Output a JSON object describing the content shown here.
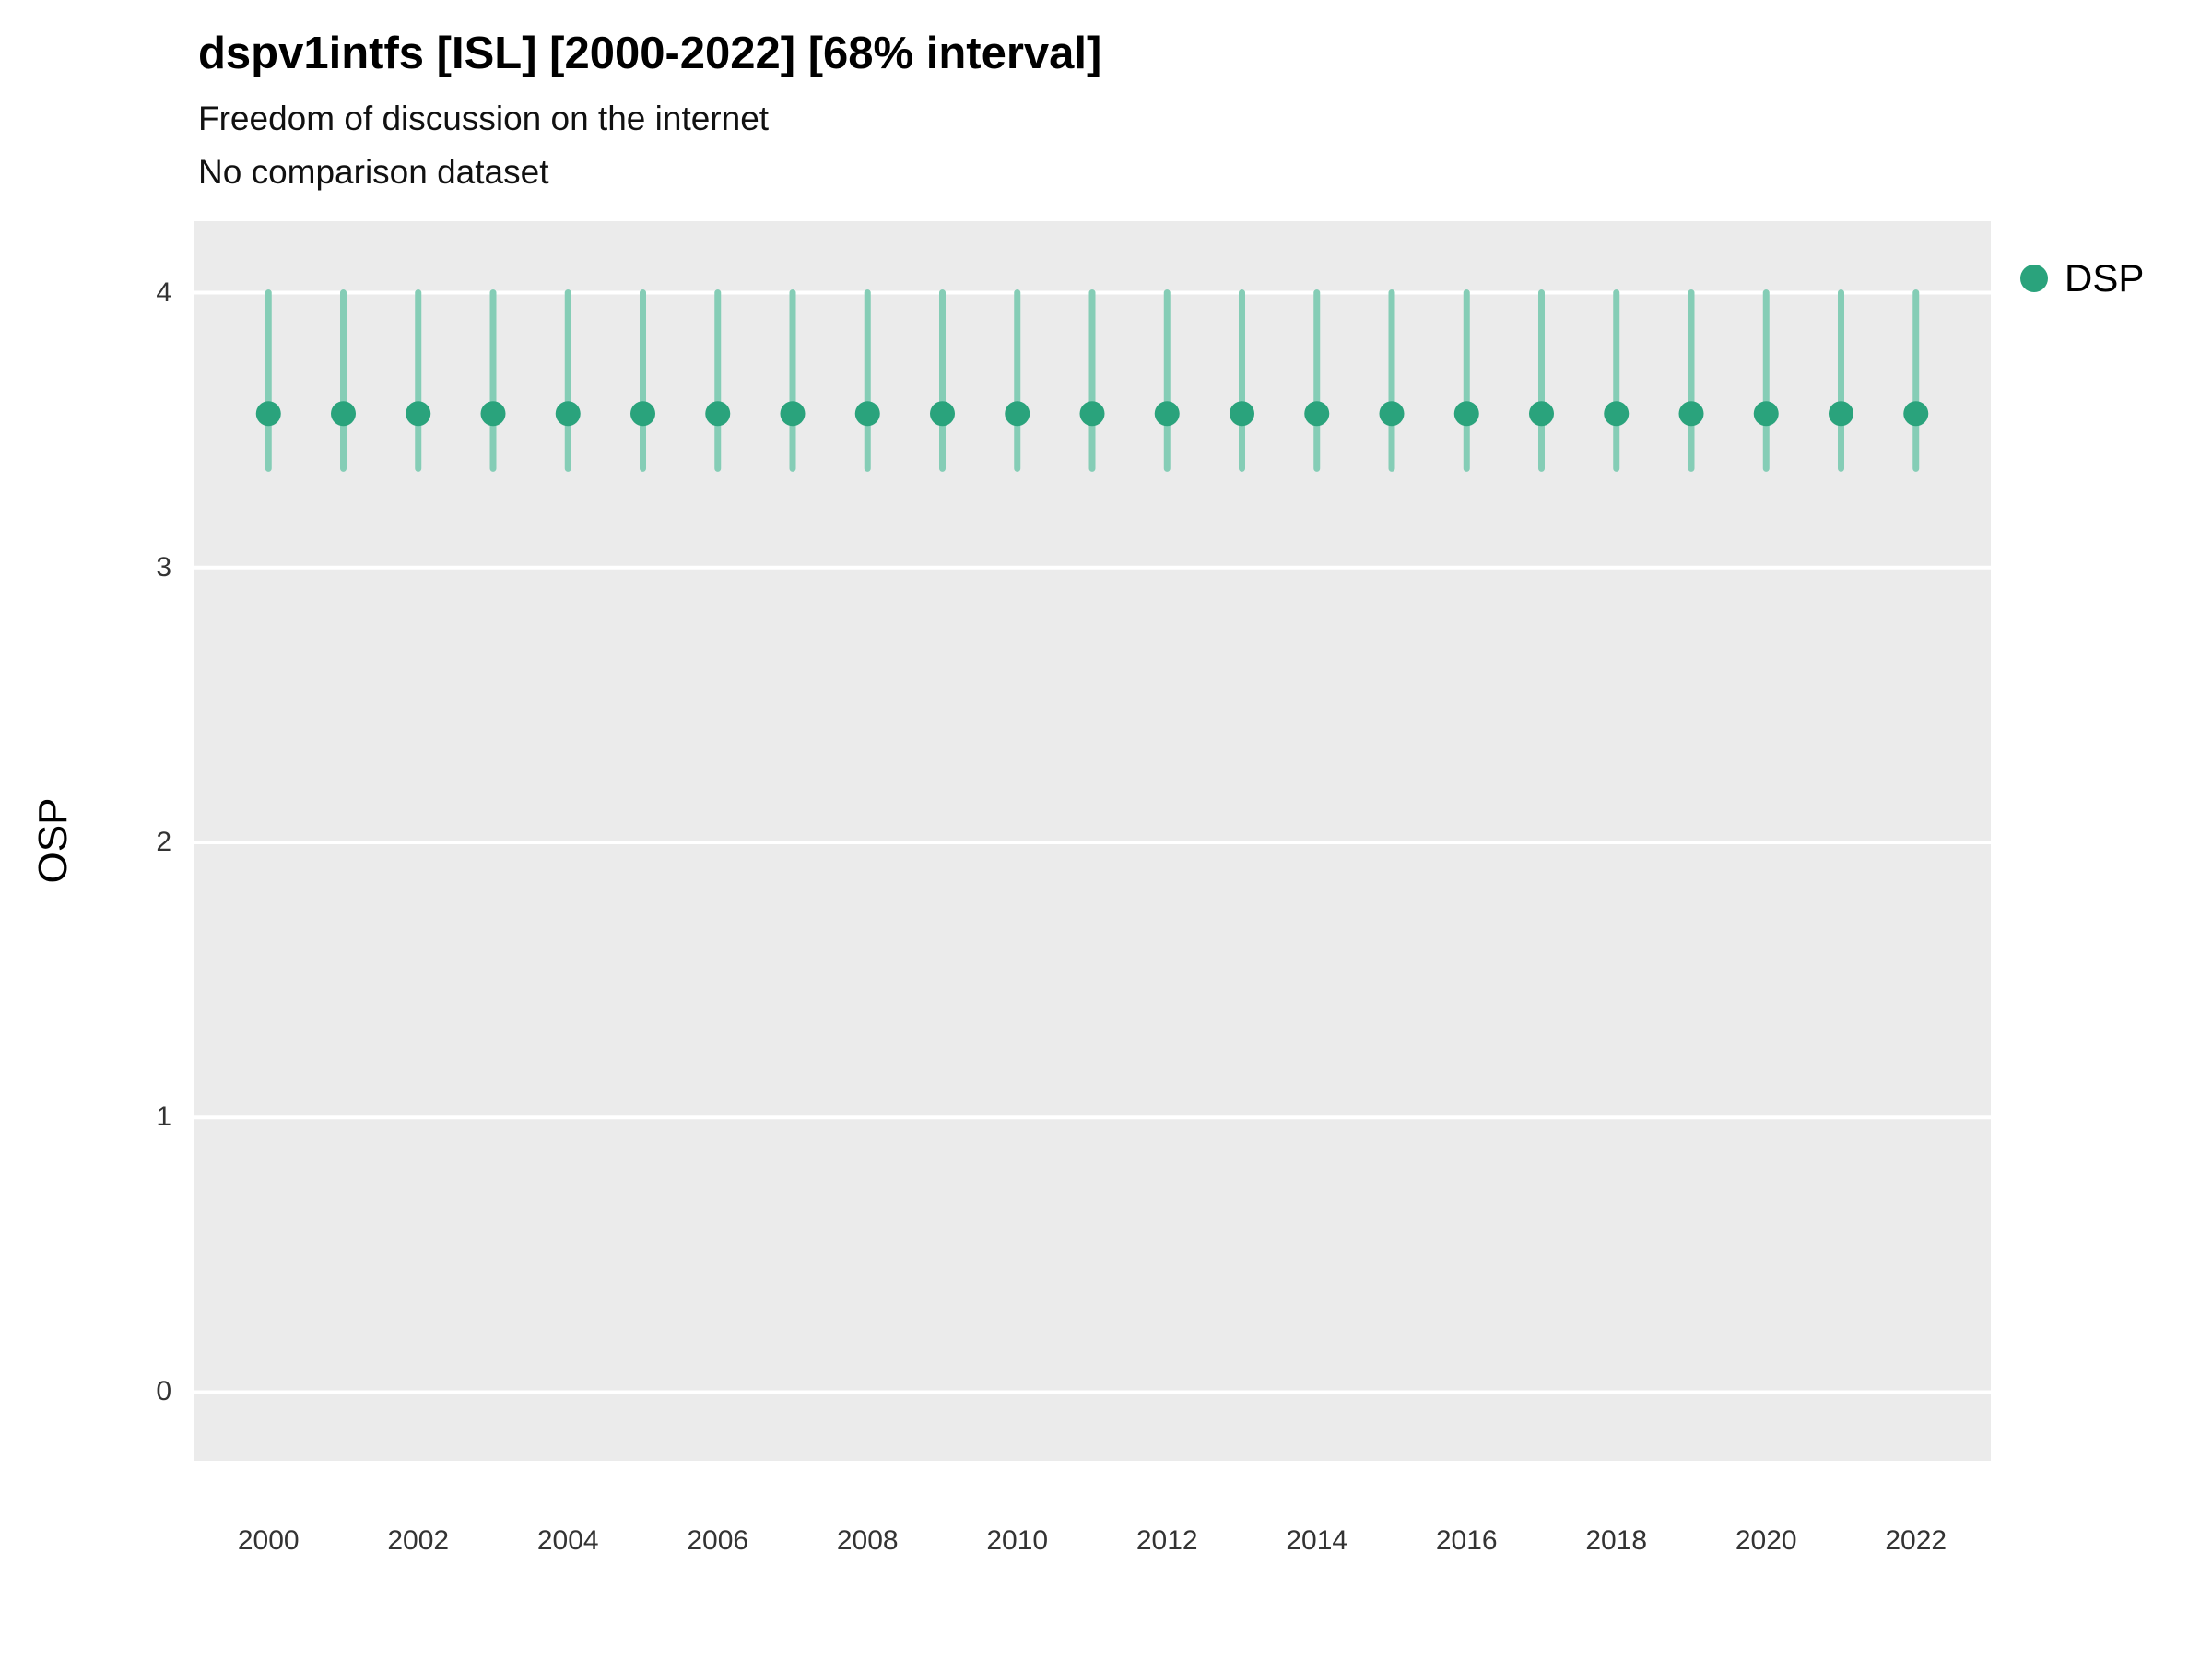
{
  "chart_data": {
    "type": "scatter",
    "title": "dspv1intfs [ISL] [2000-2022] [68% interval]",
    "subtitle": "Freedom of discussion on the internet",
    "subtitle2": "No comparison dataset",
    "xlabel": "",
    "ylabel": "OSP",
    "xlim": [
      1999,
      2023
    ],
    "ylim": [
      -0.25,
      4.26
    ],
    "y_ticks": [
      0,
      1,
      2,
      3,
      4
    ],
    "x_ticks": [
      2000,
      2002,
      2004,
      2006,
      2008,
      2010,
      2012,
      2014,
      2016,
      2018,
      2020,
      2022
    ],
    "grid": "horizontal-major-only",
    "legend": {
      "label": "DSP",
      "position": "right"
    },
    "interval": "68% interval",
    "colors": {
      "point": "#2aa37c",
      "interval": "#85cdb6",
      "panel_bg": "#ebebeb",
      "grid": "#ffffff"
    },
    "series": [
      {
        "name": "DSP",
        "x": [
          2000,
          2001,
          2002,
          2003,
          2004,
          2005,
          2006,
          2007,
          2008,
          2009,
          2010,
          2011,
          2012,
          2013,
          2014,
          2015,
          2016,
          2017,
          2018,
          2019,
          2020,
          2021,
          2022
        ],
        "y": [
          3.56,
          3.56,
          3.56,
          3.56,
          3.56,
          3.56,
          3.56,
          3.56,
          3.56,
          3.56,
          3.56,
          3.56,
          3.56,
          3.56,
          3.56,
          3.56,
          3.56,
          3.56,
          3.56,
          3.56,
          3.56,
          3.56,
          3.56
        ],
        "lower": [
          3.36,
          3.36,
          3.36,
          3.36,
          3.36,
          3.36,
          3.36,
          3.36,
          3.36,
          3.36,
          3.36,
          3.36,
          3.36,
          3.36,
          3.36,
          3.36,
          3.36,
          3.36,
          3.36,
          3.36,
          3.36,
          3.36,
          3.36
        ],
        "upper": [
          4.0,
          4.0,
          4.0,
          4.0,
          4.0,
          4.0,
          4.0,
          4.0,
          4.0,
          4.0,
          4.0,
          4.0,
          4.0,
          4.0,
          4.0,
          4.0,
          4.0,
          4.0,
          4.0,
          4.0,
          4.0,
          4.0,
          4.0
        ]
      }
    ]
  }
}
